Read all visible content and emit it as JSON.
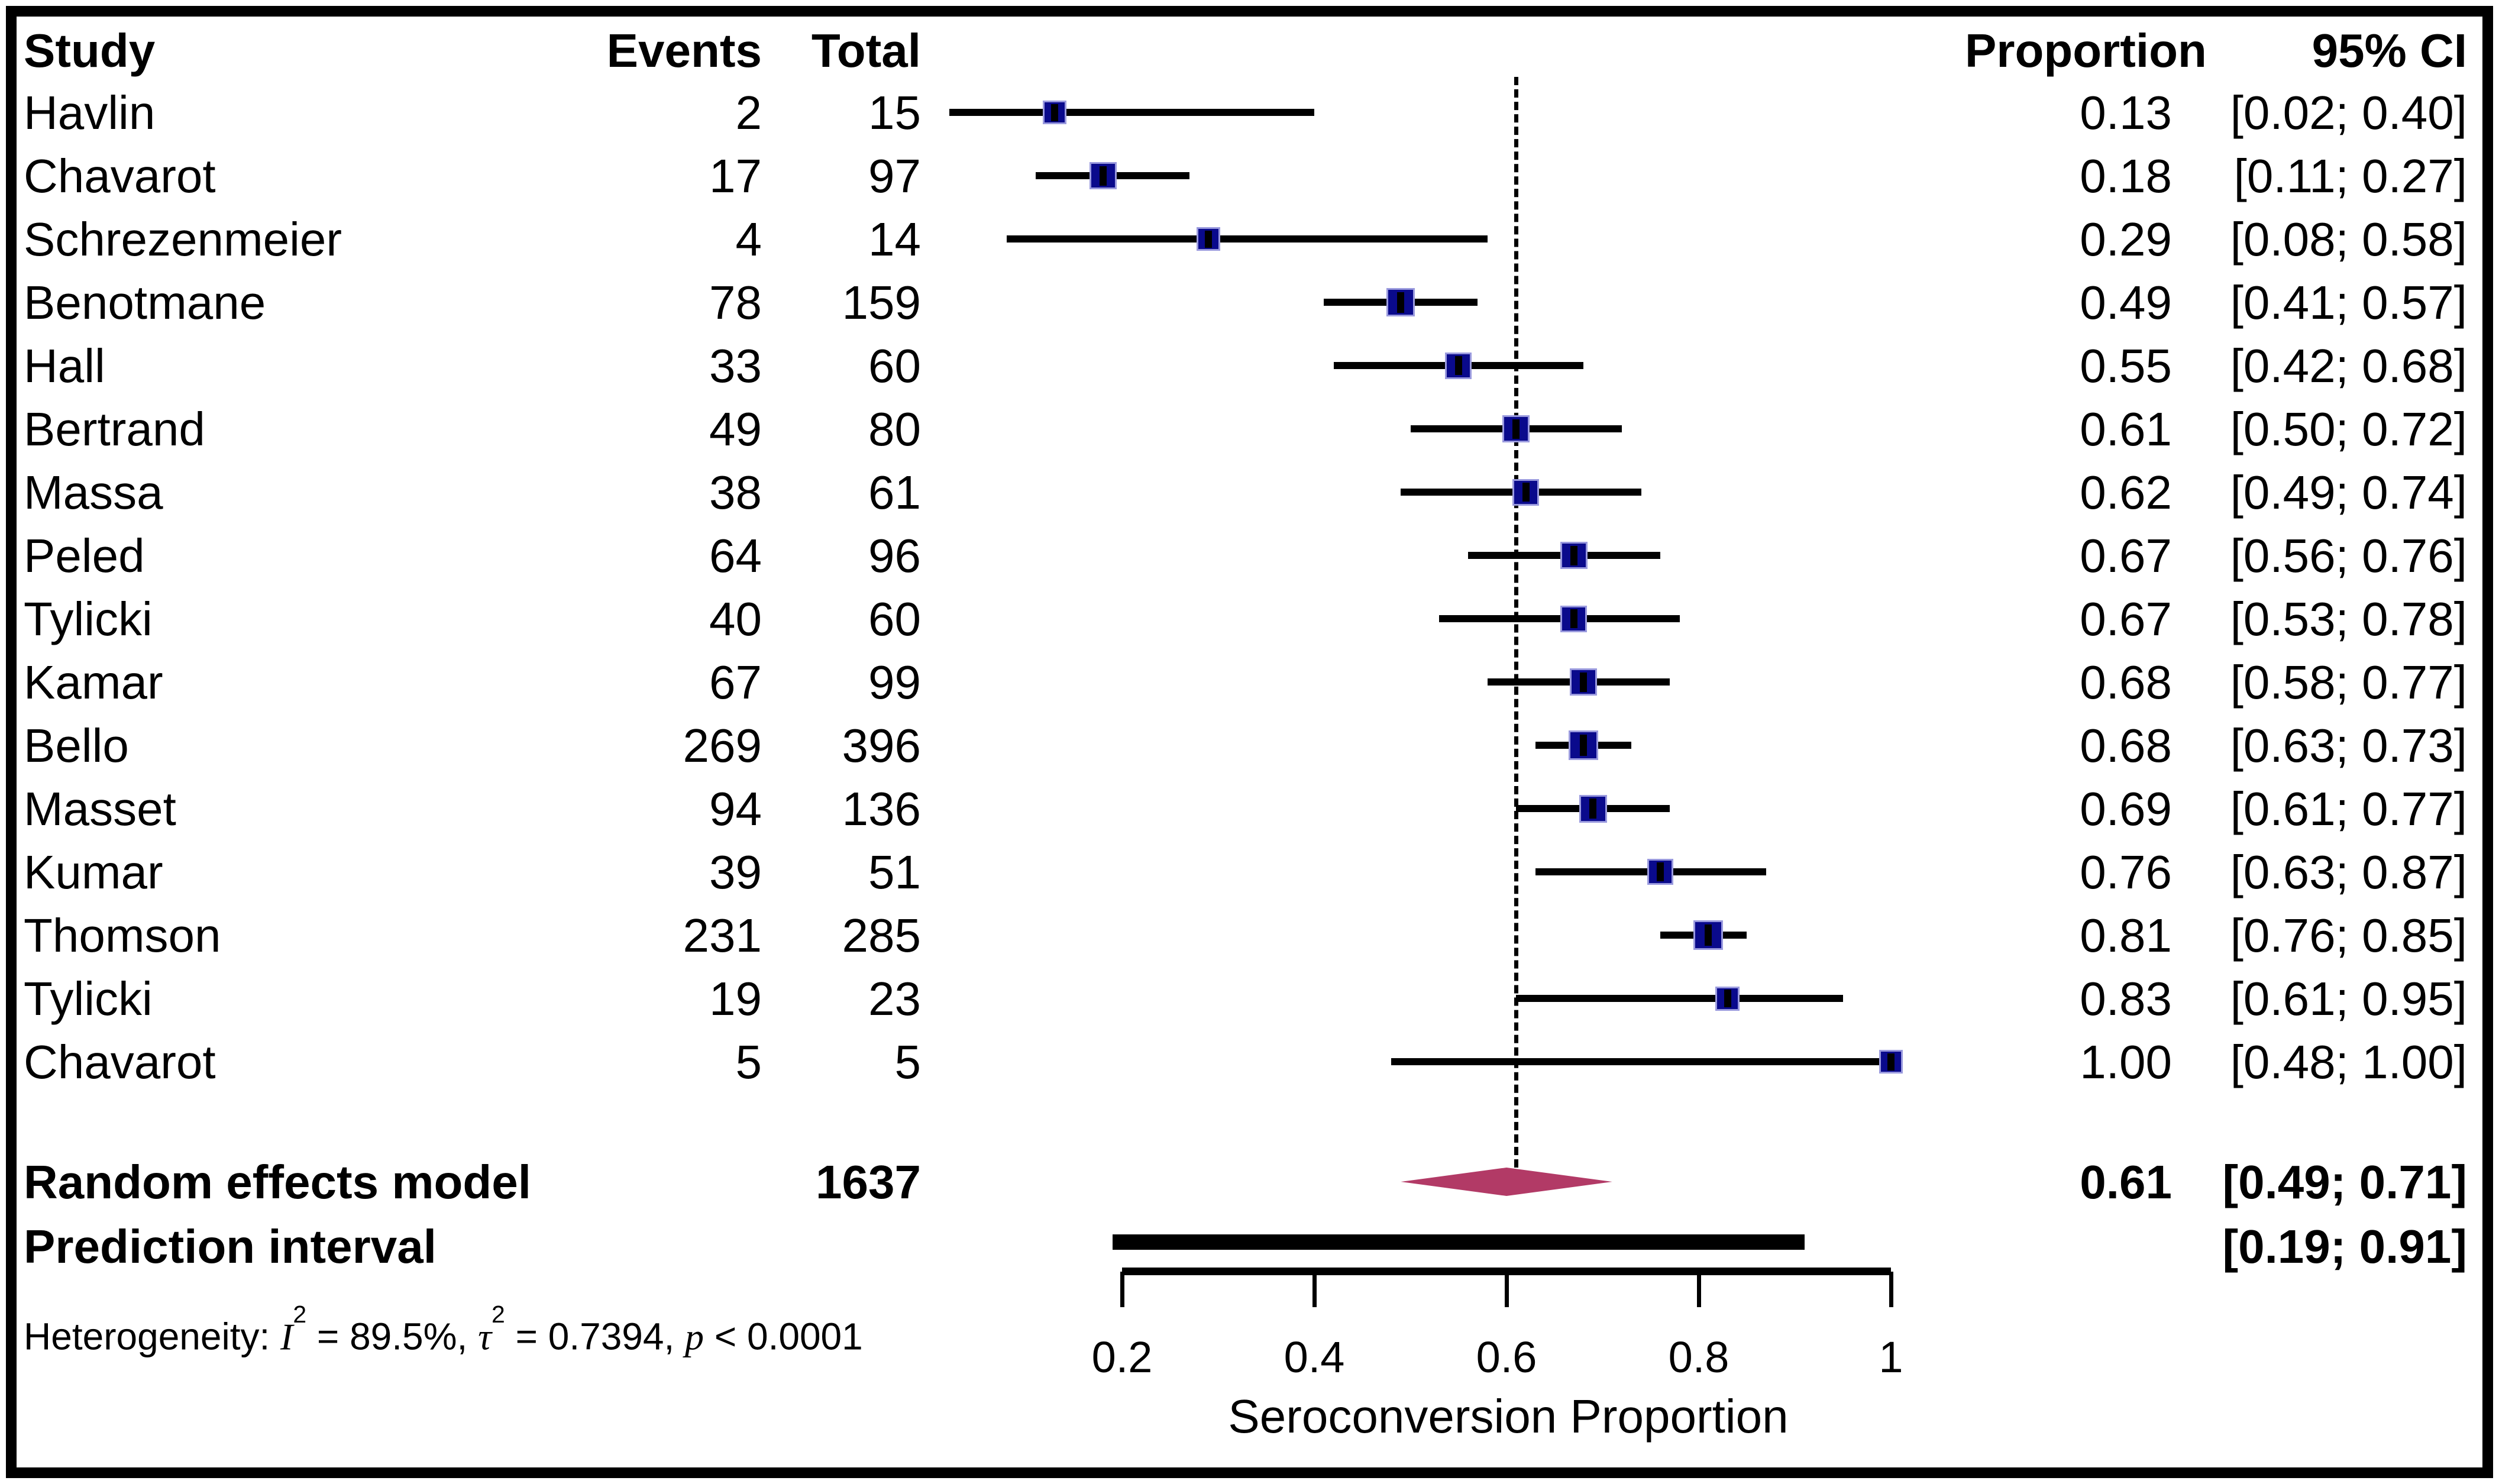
{
  "header": {
    "study": "Study",
    "events": "Events",
    "total": "Total",
    "proportion": "Proportion",
    "ci": "95% CI"
  },
  "chart_data": {
    "type": "forest",
    "xlabel": "Seroconversion Proportion",
    "axis": {
      "ticks": [
        "0.2",
        "0.4",
        "0.6",
        "0.8",
        "1"
      ],
      "tick_values": [
        0.2,
        0.4,
        0.6,
        0.8,
        1.0
      ],
      "label": "Seroconversion Proportion",
      "xlim": [
        0.2,
        1.0
      ]
    },
    "reference_line": 0.61,
    "studies": [
      {
        "name": "Havlin",
        "events": "2",
        "total": "15",
        "proportion": "0.13",
        "ci": "[0.02; 0.40]",
        "point": 0.13,
        "lo": 0.02,
        "hi": 0.4,
        "size": 40
      },
      {
        "name": "Chavarot",
        "events": "17",
        "total": "97",
        "proportion": "0.18",
        "ci": "[0.11; 0.27]",
        "point": 0.18,
        "lo": 0.11,
        "hi": 0.27,
        "size": 46
      },
      {
        "name": "Schrezenmeier",
        "events": "4",
        "total": "14",
        "proportion": "0.29",
        "ci": "[0.08; 0.58]",
        "point": 0.29,
        "lo": 0.08,
        "hi": 0.58,
        "size": 40
      },
      {
        "name": "Benotmane",
        "events": "78",
        "total": "159",
        "proportion": "0.49",
        "ci": "[0.41; 0.57]",
        "point": 0.49,
        "lo": 0.41,
        "hi": 0.57,
        "size": 48
      },
      {
        "name": "Hall",
        "events": "33",
        "total": "60",
        "proportion": "0.55",
        "ci": "[0.42; 0.68]",
        "point": 0.55,
        "lo": 0.42,
        "hi": 0.68,
        "size": 45
      },
      {
        "name": "Bertrand",
        "events": "49",
        "total": "80",
        "proportion": "0.61",
        "ci": "[0.50; 0.72]",
        "point": 0.61,
        "lo": 0.5,
        "hi": 0.72,
        "size": 46
      },
      {
        "name": "Massa",
        "events": "38",
        "total": "61",
        "proportion": "0.62",
        "ci": "[0.49; 0.74]",
        "point": 0.62,
        "lo": 0.49,
        "hi": 0.74,
        "size": 45
      },
      {
        "name": "Peled",
        "events": "64",
        "total": "96",
        "proportion": "0.67",
        "ci": "[0.56; 0.76]",
        "point": 0.67,
        "lo": 0.56,
        "hi": 0.76,
        "size": 46
      },
      {
        "name": "Tylicki",
        "events": "40",
        "total": "60",
        "proportion": "0.67",
        "ci": "[0.53; 0.78]",
        "point": 0.67,
        "lo": 0.53,
        "hi": 0.78,
        "size": 45
      },
      {
        "name": "Kamar",
        "events": "67",
        "total": "99",
        "proportion": "0.68",
        "ci": "[0.58; 0.77]",
        "point": 0.68,
        "lo": 0.58,
        "hi": 0.77,
        "size": 46
      },
      {
        "name": "Bello",
        "events": "269",
        "total": "396",
        "proportion": "0.68",
        "ci": "[0.63; 0.73]",
        "point": 0.68,
        "lo": 0.63,
        "hi": 0.73,
        "size": 50
      },
      {
        "name": "Masset",
        "events": "94",
        "total": "136",
        "proportion": "0.69",
        "ci": "[0.61; 0.77]",
        "point": 0.69,
        "lo": 0.61,
        "hi": 0.77,
        "size": 47
      },
      {
        "name": "Kumar",
        "events": "39",
        "total": "51",
        "proportion": "0.76",
        "ci": "[0.63; 0.87]",
        "point": 0.76,
        "lo": 0.63,
        "hi": 0.87,
        "size": 44
      },
      {
        "name": "Thomson",
        "events": "231",
        "total": "285",
        "proportion": "0.81",
        "ci": "[0.76; 0.85]",
        "point": 0.81,
        "lo": 0.76,
        "hi": 0.85,
        "size": 50
      },
      {
        "name": "Tylicki",
        "events": "19",
        "total": "23",
        "proportion": "0.83",
        "ci": "[0.61; 0.95]",
        "point": 0.83,
        "lo": 0.61,
        "hi": 0.95,
        "size": 41
      },
      {
        "name": "Chavarot",
        "events": "5",
        "total": "5",
        "proportion": "1.00",
        "ci": "[0.48; 1.00]",
        "point": 1.0,
        "lo": 0.48,
        "hi": 1.0,
        "size": 40
      }
    ],
    "summary": {
      "label": "Random effects model",
      "total": "1637",
      "proportion": "0.61",
      "ci": "[0.49; 0.71]",
      "point": 0.61,
      "lo": 0.49,
      "hi": 0.71
    },
    "prediction": {
      "label": "Prediction interval",
      "ci": "[0.19; 0.91]",
      "lo": 0.19,
      "hi": 0.91
    },
    "heterogeneity": {
      "prefix": "Heterogeneity: ",
      "i_label": "I",
      "i_sup": "2",
      "i_value": " = 89.5%, ",
      "tau_label": "τ",
      "tau_sup": "2",
      "tau_value": " = 0.7394, ",
      "p_label": "p",
      "p_value": " < 0.0001"
    },
    "colors": {
      "square": "#0a0a8c",
      "square_border": "#9a9ade",
      "diamond": "#b23a66",
      "ink": "#000000"
    }
  }
}
